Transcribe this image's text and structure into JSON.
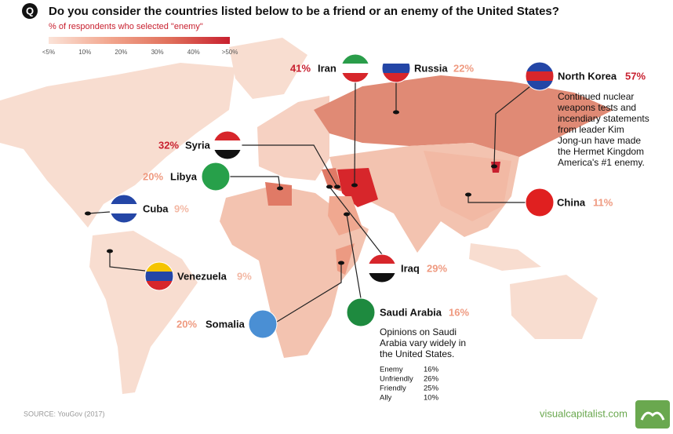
{
  "header": {
    "icon": "Q",
    "title": "Do you consider the countries listed below to be a friend or an enemy of the United States?",
    "legend_label": "% of respondents who selected \"enemy\"",
    "legend_ticks": [
      "<5%",
      "10%",
      "20%",
      "30%",
      "40%",
      ">50%"
    ],
    "legend_colors": [
      "#fbe3d8",
      "#f2a78f",
      "#e0705b",
      "#c8202f"
    ]
  },
  "countries": [
    {
      "name": "Iran",
      "value_label": "41%",
      "label_color": "#c8202f"
    },
    {
      "name": "Russia",
      "value_label": "22%",
      "label_color": "#ef9a80"
    },
    {
      "name": "North Korea",
      "value_label": "57%",
      "label_color": "#c8202f"
    },
    {
      "name": "Syria",
      "value_label": "32%",
      "label_color": "#c8202f"
    },
    {
      "name": "Libya",
      "value_label": "20%",
      "label_color": "#ef9a80"
    },
    {
      "name": "Cuba",
      "value_label": "9%",
      "label_color": "#f3b8a4"
    },
    {
      "name": "Venezuela",
      "value_label": "9%",
      "label_color": "#f3b8a4"
    },
    {
      "name": "Iraq",
      "value_label": "29%",
      "label_color": "#ef9a80"
    },
    {
      "name": "Saudi Arabia",
      "value_label": "16%",
      "label_color": "#ef9a80"
    },
    {
      "name": "Somalia",
      "value_label": "20%",
      "label_color": "#ef9a80"
    },
    {
      "name": "China",
      "value_label": "11%",
      "label_color": "#ef9a80"
    }
  ],
  "north_korea_note": [
    "Continued nuclear",
    "weapons tests and",
    "incendiary statements",
    "from leader Kim",
    "Jong-un have made",
    "the Hermet Kingdom",
    "America's #1 enemy."
  ],
  "saudi_detail": {
    "note": [
      "Opinions on Saudi",
      "Arabia vary widely in",
      "the United States."
    ],
    "rows": [
      [
        "Enemy",
        "16%"
      ],
      [
        "Unfriendly",
        "26%"
      ],
      [
        "Friendly",
        "25%"
      ],
      [
        "Ally",
        "10%"
      ]
    ]
  },
  "footer": {
    "source": "SOURCE: YouGov (2017)",
    "brand": "visualcapitalist.com"
  }
}
